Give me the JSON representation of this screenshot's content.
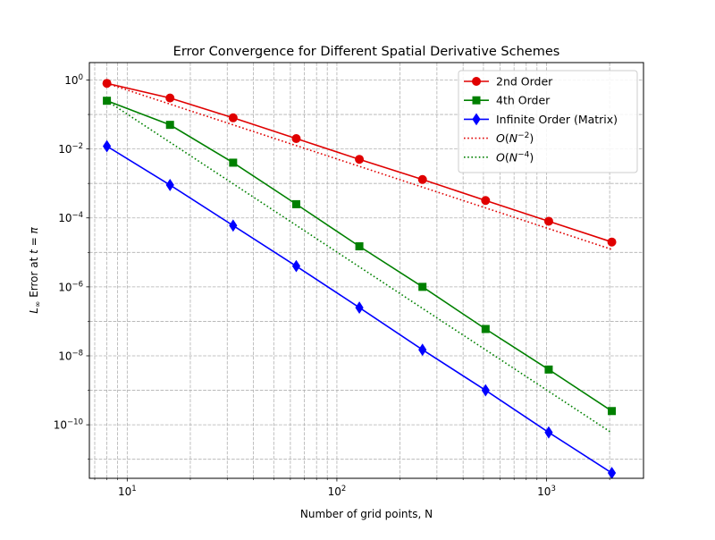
{
  "chart_data": {
    "type": "line",
    "title": "Error Convergence for Different Spatial Derivative Schemes",
    "xlabel": "Number of grid points, N",
    "ylabel_parts": {
      "prefix": "L",
      "subscript": "∞",
      "middle": " Error at ",
      "var": "t",
      "eq": " = ",
      "const": "π"
    },
    "xscale": "log",
    "yscale": "log",
    "xlim": [
      6.6,
      2900
    ],
    "ylim": [
      2.8e-12,
      3.2
    ],
    "grid": true,
    "grid_style": "dashed",
    "grid_minor_x": true,
    "legend_position": "top-right",
    "x_ticks": [
      {
        "value": 10,
        "base": "10",
        "exp": "1"
      },
      {
        "value": 100,
        "base": "10",
        "exp": "2"
      },
      {
        "value": 1000,
        "base": "10",
        "exp": "3"
      }
    ],
    "y_ticks": [
      {
        "value": 1,
        "base": "10",
        "exp": "0"
      },
      {
        "value": 0.01,
        "base": "10",
        "exp": "−2"
      },
      {
        "value": 0.0001,
        "base": "10",
        "exp": "−4"
      },
      {
        "value": 1e-06,
        "base": "10",
        "exp": "−6"
      },
      {
        "value": 1e-08,
        "base": "10",
        "exp": "−8"
      },
      {
        "value": 1e-10,
        "base": "10",
        "exp": "−10"
      }
    ],
    "x": [
      8,
      16,
      32,
      64,
      128,
      256,
      512,
      1024,
      2048
    ],
    "series": [
      {
        "name": "2nd Order",
        "color": "#e00000",
        "marker": "circle",
        "linestyle": "solid",
        "values": [
          0.8,
          0.3,
          0.08,
          0.02,
          0.005,
          0.0013,
          0.00032,
          8e-05,
          2e-05
        ]
      },
      {
        "name": "4th Order",
        "color": "#008000",
        "marker": "square",
        "linestyle": "solid",
        "values": [
          0.25,
          0.05,
          0.004,
          0.00025,
          1.5e-05,
          1e-06,
          6e-08,
          4e-09,
          2.5e-10
        ]
      },
      {
        "name": "Infinite Order (Matrix)",
        "color": "#0000ff",
        "marker": "diamond",
        "linestyle": "solid",
        "values": [
          0.012,
          0.0009,
          6e-05,
          4e-06,
          2.5e-07,
          1.5e-08,
          1e-09,
          6e-11,
          4e-12
        ]
      },
      {
        "name_parts": {
          "o": "O",
          "open": "(",
          "n": "N",
          "exp": "−2",
          "close": ")"
        },
        "color": "#e00000",
        "marker": "none",
        "linestyle": "dotted",
        "values": [
          0.8,
          0.2,
          0.05,
          0.0125,
          0.003125,
          0.00078,
          0.000195,
          4.88e-05,
          1.22e-05
        ]
      },
      {
        "name_parts": {
          "o": "O",
          "open": "(",
          "n": "N",
          "exp": "−4",
          "close": ")"
        },
        "color": "#008000",
        "marker": "none",
        "linestyle": "dotted",
        "values": [
          0.25,
          0.0156,
          0.000977,
          6.1e-05,
          3.81e-06,
          2.38e-07,
          1.49e-08,
          9.31e-10,
          5.82e-11
        ]
      }
    ]
  }
}
